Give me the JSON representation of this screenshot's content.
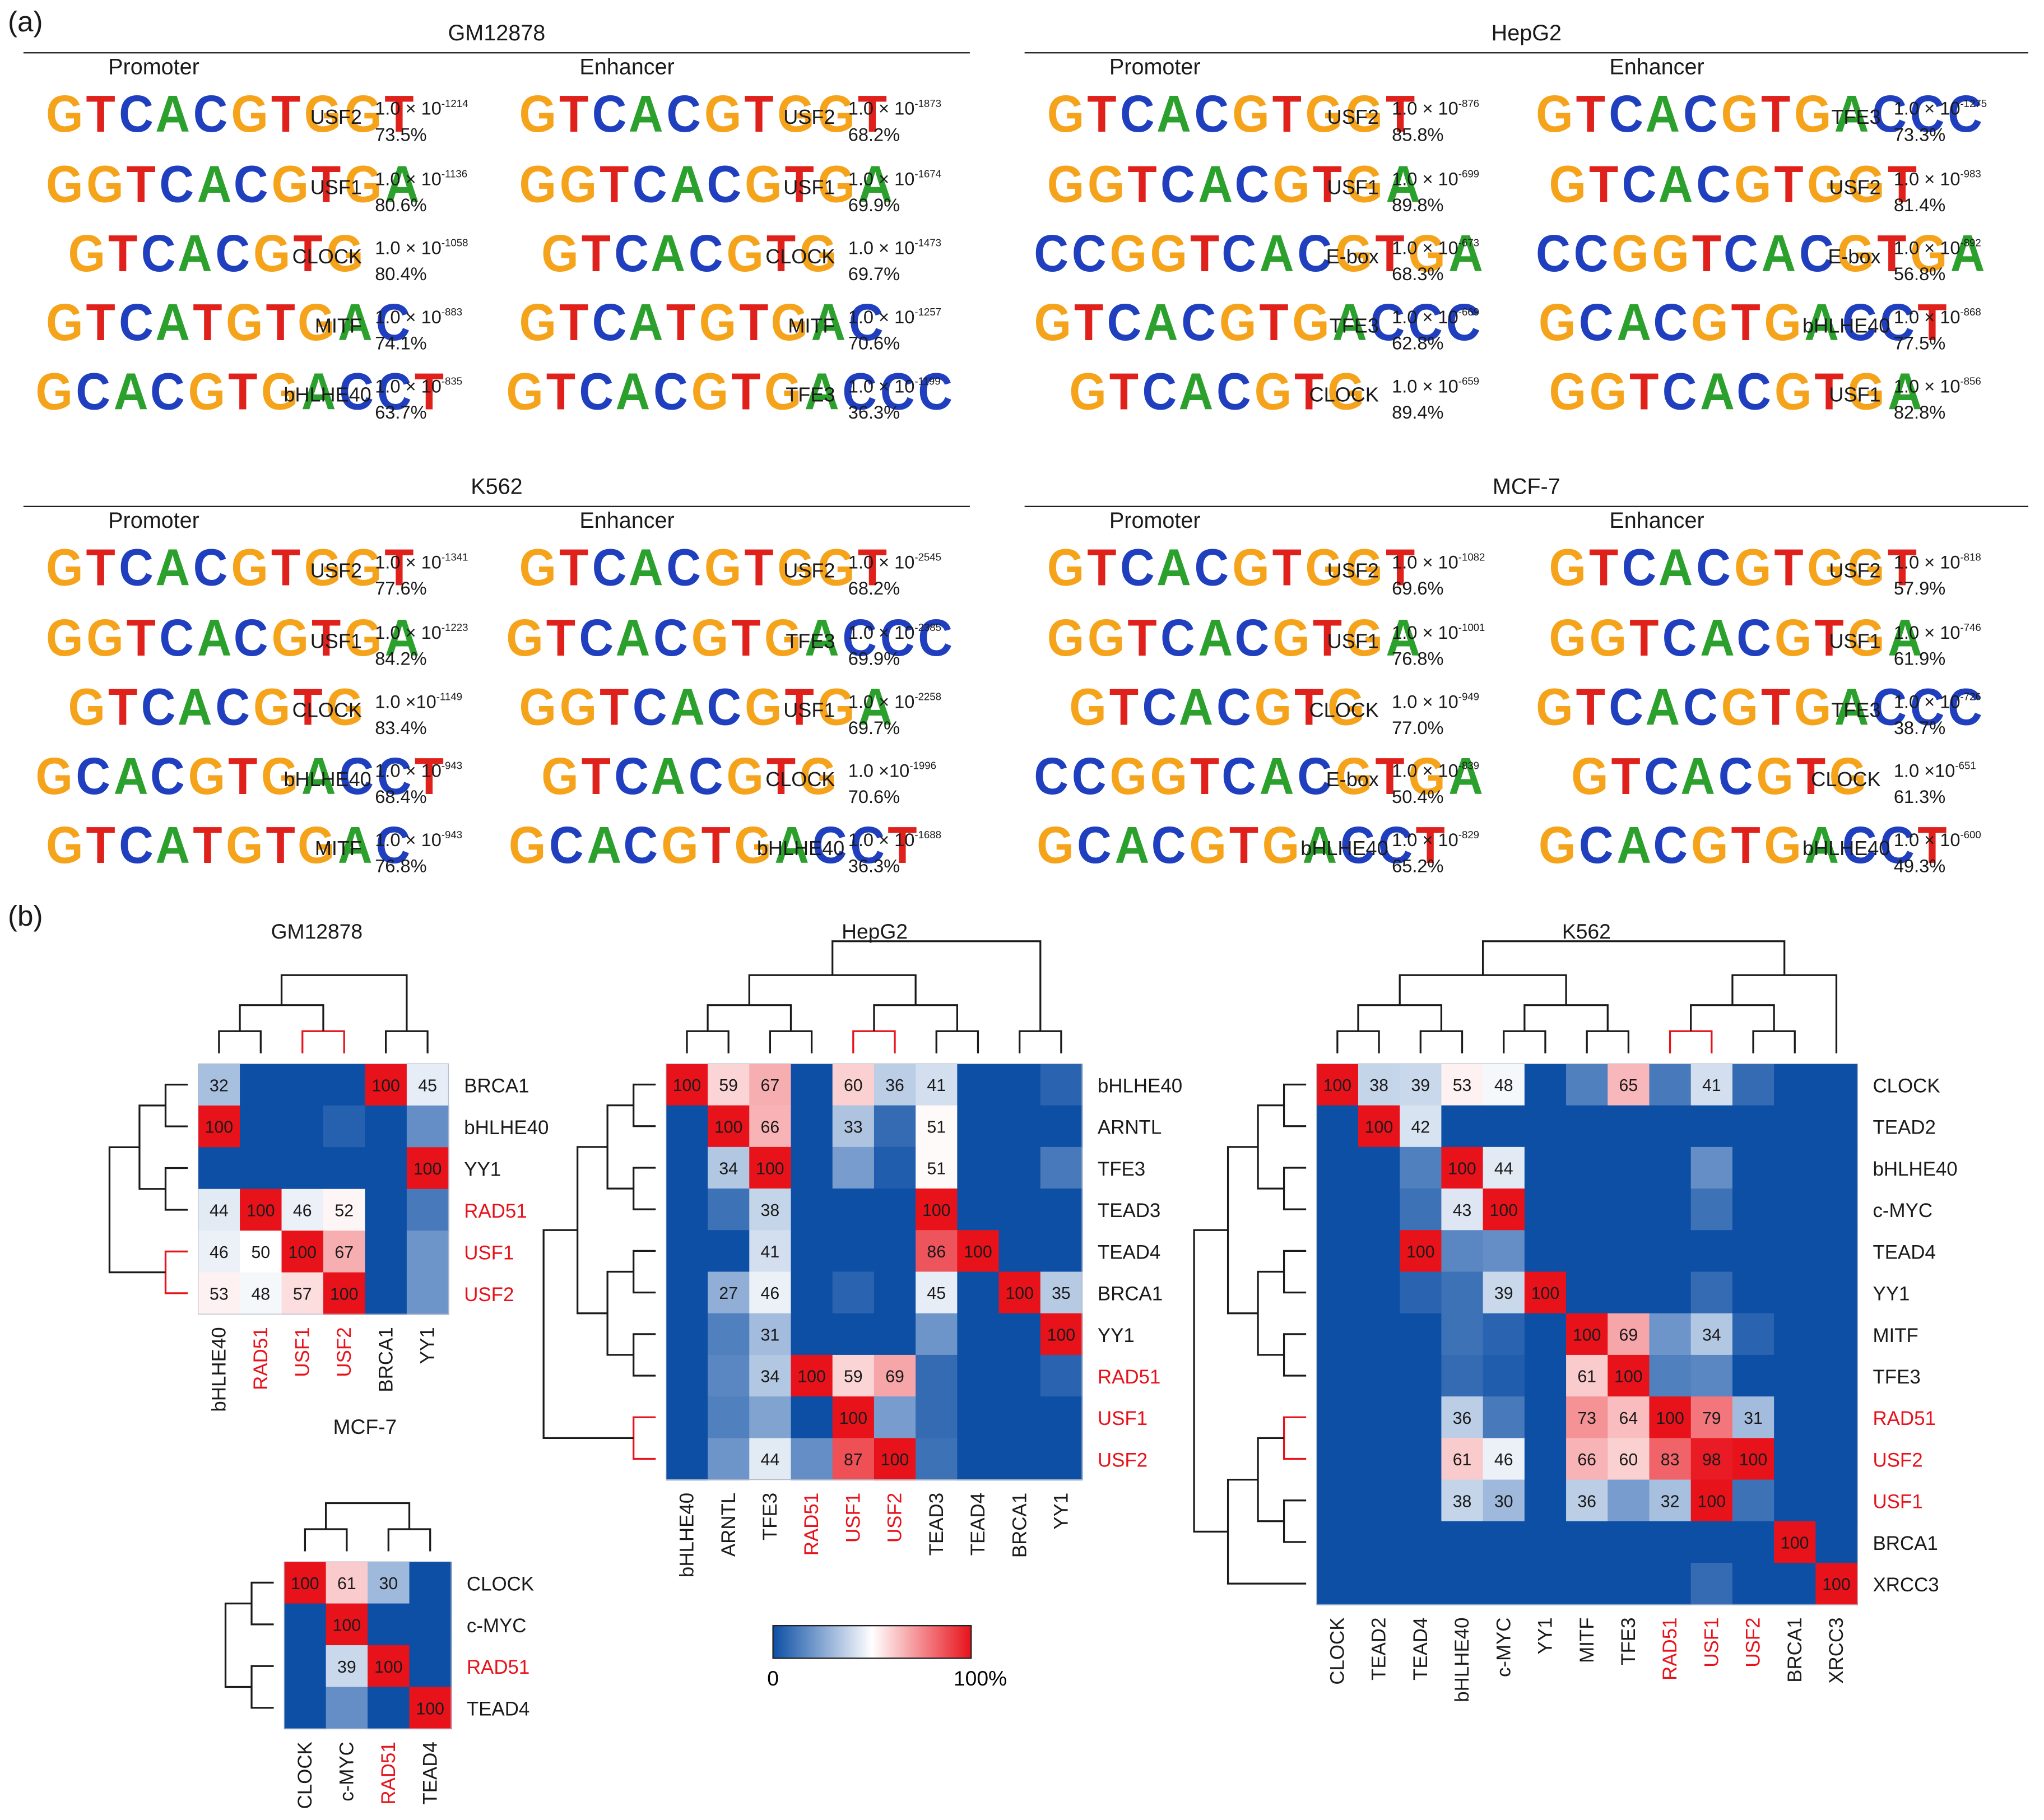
{
  "panel_a_label": "(a)",
  "panel_b_label": "(b)",
  "motif_panels": [
    {
      "cell_line": "GM12878",
      "promoter_title": "Promoter",
      "enhancer_title": "Enhancer",
      "promoter": [
        {
          "motif": "GTCACGTGGT",
          "tf": "USF2",
          "p_base": "1.0 × 10",
          "p_exp": "-1214",
          "pct": "73.5%"
        },
        {
          "motif": "GGTCACGTGA",
          "tf": "USF1",
          "p_base": "1.0 × 10",
          "p_exp": "-1136",
          "pct": "80.6%"
        },
        {
          "motif": "GTCACGTG",
          "tf": "CLOCK",
          "p_base": "1.0 × 10",
          "p_exp": "-1058",
          "pct": "80.4%"
        },
        {
          "motif": "GTCATGTGAC",
          "tf": "MITF",
          "p_base": "1.0 × 10",
          "p_exp": "-883",
          "pct": "74.1%"
        },
        {
          "motif": "GCACGTGACCT",
          "tf": "bHLHE40",
          "p_base": "1.0 × 10",
          "p_exp": "-835",
          "pct": "63.7%"
        }
      ],
      "enhancer": [
        {
          "motif": "GTCACGTGGT",
          "tf": "USF2",
          "p_base": "1.0 × 10",
          "p_exp": "-1873",
          "pct": "68.2%"
        },
        {
          "motif": "GGTCACGTGA",
          "tf": "USF1",
          "p_base": "1.0 × 10",
          "p_exp": "-1674",
          "pct": "69.9%"
        },
        {
          "motif": "GTCACGTG",
          "tf": "CLOCK",
          "p_base": "1.0 × 10",
          "p_exp": "-1473",
          "pct": "69.7%"
        },
        {
          "motif": "GTCATGTGAC",
          "tf": "MITF",
          "p_base": "1.0 × 10",
          "p_exp": "-1257",
          "pct": "70.6%"
        },
        {
          "motif": "GTCACGTGACCC",
          "tf": "TFE3",
          "p_base": "1.0 × 10",
          "p_exp": "-1199",
          "pct": "36.3%"
        }
      ]
    },
    {
      "cell_line": "HepG2",
      "promoter_title": "Promoter",
      "enhancer_title": "Enhancer",
      "promoter": [
        {
          "motif": "GTCACGTGGT",
          "tf": "USF2",
          "p_base": "1.0 × 10",
          "p_exp": "-876",
          "pct": "85.8%"
        },
        {
          "motif": "GGTCACGTGA",
          "tf": "USF1",
          "p_base": "1.0 × 10",
          "p_exp": "-699",
          "pct": "89.8%"
        },
        {
          "motif": "CCGGTCACGTGA",
          "tf": "E-box",
          "p_base": "1.0 × 10",
          "p_exp": "-673",
          "pct": "68.3%"
        },
        {
          "motif": "GTCACGTGACCC",
          "tf": "TFE3",
          "p_base": "1.0 × 10",
          "p_exp": "-669",
          "pct": "62.8%"
        },
        {
          "motif": "GTCACGTG",
          "tf": "CLOCK",
          "p_base": "1.0 × 10",
          "p_exp": "-659",
          "pct": "89.4%"
        }
      ],
      "enhancer": [
        {
          "motif": "GTCACGTGACCC",
          "tf": "TFE3",
          "p_base": "1.0 × 10",
          "p_exp": "-1275",
          "pct": "73.3%"
        },
        {
          "motif": "GTCACGTGGT",
          "tf": "USF2",
          "p_base": "1.0 × 10",
          "p_exp": "-983",
          "pct": "81.4%"
        },
        {
          "motif": "CCGGTCACGTGA",
          "tf": "E-box",
          "p_base": "1.0 × 10",
          "p_exp": "-892",
          "pct": "56.8%"
        },
        {
          "motif": "GCACGTGACCT",
          "tf": "bHLHE40",
          "p_base": "1.0 × 10",
          "p_exp": "-868",
          "pct": "77.5%"
        },
        {
          "motif": "GGTCACGTGA",
          "tf": "USF1",
          "p_base": "1.0 × 10",
          "p_exp": "-856",
          "pct": "82.8%"
        }
      ]
    },
    {
      "cell_line": "K562",
      "promoter_title": "Promoter",
      "enhancer_title": "Enhancer",
      "promoter": [
        {
          "motif": "GTCACGTGGT",
          "tf": "USF2",
          "p_base": "1.0 × 10",
          "p_exp": "-1341",
          "pct": "77.6%"
        },
        {
          "motif": "GGTCACGTGA",
          "tf": "USF1",
          "p_base": "1.0 × 10",
          "p_exp": "-1223",
          "pct": "84.2%"
        },
        {
          "motif": "GTCACGTG",
          "tf": "CLOCK",
          "p_base": "1.0 ×10",
          "p_exp": "-1149",
          "pct": "83.4%"
        },
        {
          "motif": "GCACGTGACCT",
          "tf": "bHLHE40",
          "p_base": "1.0 × 10",
          "p_exp": "-943",
          "pct": "68.4%"
        },
        {
          "motif": "GTCATGTGAC",
          "tf": "MITF",
          "p_base": "1.0 × 10",
          "p_exp": "-943",
          "pct": "76.8%"
        }
      ],
      "enhancer": [
        {
          "motif": "GTCACGTGGT",
          "tf": "USF2",
          "p_base": "1.0 × 10",
          "p_exp": "-2545",
          "pct": "68.2%"
        },
        {
          "motif": "GTCACGTGACCC",
          "tf": "TFE3",
          "p_base": "1.0 × 10",
          "p_exp": "-2385",
          "pct": "69.9%"
        },
        {
          "motif": "GGTCACGTGA",
          "tf": "USF1",
          "p_base": "1.0 × 10",
          "p_exp": "-2258",
          "pct": "69.7%"
        },
        {
          "motif": "GTCACGTG",
          "tf": "CLOCK",
          "p_base": "1.0 ×10",
          "p_exp": "-1996",
          "pct": "70.6%"
        },
        {
          "motif": "GCACGTGACCT",
          "tf": "bHLHE40",
          "p_base": "1.0 × 10",
          "p_exp": "-1688",
          "pct": "36.3%"
        }
      ]
    },
    {
      "cell_line": "MCF-7",
      "promoter_title": "Promoter",
      "enhancer_title": "Enhancer",
      "promoter": [
        {
          "motif": "GTCACGTGGT",
          "tf": "USF2",
          "p_base": "1.0 × 10",
          "p_exp": "-1082",
          "pct": "69.6%"
        },
        {
          "motif": "GGTCACGTGA",
          "tf": "USF1",
          "p_base": "1.0 × 10",
          "p_exp": "-1001",
          "pct": "76.8%"
        },
        {
          "motif": "GTCACGTG",
          "tf": "CLOCK",
          "p_base": "1.0 × 10",
          "p_exp": "-949",
          "pct": "77.0%"
        },
        {
          "motif": "CCGGTCACGTGA",
          "tf": "E-box",
          "p_base": "1.0 × 10",
          "p_exp": "-839",
          "pct": "50.4%"
        },
        {
          "motif": "GCACGTGACCT",
          "tf": "bHLHE40",
          "p_base": "1.0 × 10",
          "p_exp": "-829",
          "pct": "65.2%"
        }
      ],
      "enhancer": [
        {
          "motif": "GTCACGTGGT",
          "tf": "USF2",
          "p_base": "1.0 × 10",
          "p_exp": "-818",
          "pct": "57.9%"
        },
        {
          "motif": "GGTCACGTGA",
          "tf": "USF1",
          "p_base": "1.0 × 10",
          "p_exp": "-746",
          "pct": "61.9%"
        },
        {
          "motif": "GTCACGTGACCC",
          "tf": "TFE3",
          "p_base": "1.0 × 10",
          "p_exp": "-726",
          "pct": "38.7%"
        },
        {
          "motif": "GTCACGTG",
          "tf": "CLOCK",
          "p_base": "1.0 ×10",
          "p_exp": "-651",
          "pct": "61.3%"
        },
        {
          "motif": "GCACGTGACCT",
          "tf": "bHLHE40",
          "p_base": "1.0 × 10",
          "p_exp": "-600",
          "pct": "49.3%"
        }
      ]
    }
  ],
  "colors": {
    "base_A": "#2ca02c",
    "base_C": "#1f3fbf",
    "base_G": "#f5a31a",
    "base_T": "#e0201b",
    "heat_low": "#0d4fa5",
    "heat_mid": "#ffffff",
    "heat_high": "#e8121b",
    "highlight": "#e8121b",
    "dendrogram": "#1a1a1a"
  },
  "chart_data": [
    {
      "type": "heatmap",
      "title": "GM12878",
      "rows": [
        "BRCA1",
        "bHLHE40",
        "YY1",
        "RAD51",
        "USF1",
        "USF2"
      ],
      "columns": [
        "bHLHE40",
        "RAD51",
        "USF1",
        "USF2",
        "BRCA1",
        "YY1"
      ],
      "highlighted": [
        "RAD51",
        "USF1",
        "USF2"
      ],
      "values": [
        [
          32,
          0,
          0,
          0,
          100,
          45
        ],
        [
          100,
          0,
          0,
          5,
          0,
          18
        ],
        [
          0,
          0,
          0,
          0,
          0,
          100
        ],
        [
          44,
          100,
          46,
          52,
          0,
          12
        ],
        [
          46,
          50,
          100,
          67,
          0,
          20
        ],
        [
          53,
          48,
          57,
          100,
          0,
          20
        ]
      ],
      "labeled_cells": [
        [
          32,
          0,
          0,
          0,
          100,
          45
        ],
        [
          100,
          0,
          0,
          0,
          0,
          0
        ],
        [
          0,
          0,
          0,
          0,
          0,
          100
        ],
        [
          44,
          100,
          46,
          52,
          0,
          0
        ],
        [
          46,
          50,
          100,
          67,
          0,
          0
        ],
        [
          53,
          48,
          57,
          100,
          0,
          0
        ]
      ]
    },
    {
      "type": "heatmap",
      "title": "HepG2",
      "rows": [
        "bHLHE40",
        "ARNTL",
        "TFE3",
        "TEAD3",
        "TEAD4",
        "BRCA1",
        "YY1",
        "RAD51",
        "USF1",
        "USF2"
      ],
      "columns": [
        "bHLHE40",
        "ARNTL",
        "TFE3",
        "RAD51",
        "USF1",
        "USF2",
        "TEAD3",
        "TEAD4",
        "BRCA1",
        "YY1"
      ],
      "highlighted": [
        "RAD51",
        "USF1",
        "USF2"
      ],
      "values": [
        [
          100,
          59,
          67,
          0,
          60,
          36,
          41,
          0,
          0,
          6
        ],
        [
          0,
          100,
          66,
          0,
          33,
          8,
          51,
          0,
          0,
          0
        ],
        [
          0,
          34,
          100,
          0,
          22,
          4,
          51,
          0,
          0,
          12
        ],
        [
          0,
          10,
          38,
          0,
          0,
          0,
          100,
          0,
          0,
          0
        ],
        [
          0,
          0,
          41,
          0,
          0,
          0,
          86,
          100,
          0,
          0
        ],
        [
          0,
          27,
          46,
          0,
          6,
          0,
          45,
          0,
          100,
          35
        ],
        [
          0,
          14,
          31,
          0,
          0,
          0,
          20,
          0,
          0,
          100
        ],
        [
          0,
          16,
          34,
          100,
          59,
          69,
          8,
          0,
          0,
          6
        ],
        [
          0,
          14,
          24,
          0,
          100,
          22,
          8,
          0,
          0,
          0
        ],
        [
          0,
          20,
          44,
          18,
          87,
          100,
          10,
          0,
          0,
          0
        ]
      ],
      "labeled_cells": [
        [
          100,
          59,
          67,
          0,
          60,
          36,
          41,
          0,
          0,
          0
        ],
        [
          0,
          100,
          66,
          0,
          33,
          0,
          51,
          0,
          0,
          0
        ],
        [
          0,
          34,
          100,
          0,
          0,
          0,
          51,
          0,
          0,
          0
        ],
        [
          0,
          0,
          38,
          0,
          0,
          0,
          100,
          0,
          0,
          0
        ],
        [
          0,
          0,
          41,
          0,
          0,
          0,
          86,
          100,
          0,
          0
        ],
        [
          0,
          27,
          46,
          0,
          0,
          0,
          45,
          0,
          100,
          35
        ],
        [
          0,
          0,
          31,
          0,
          0,
          0,
          0,
          0,
          0,
          100
        ],
        [
          0,
          0,
          34,
          100,
          59,
          69,
          0,
          0,
          0,
          0
        ],
        [
          0,
          0,
          0,
          0,
          100,
          0,
          0,
          0,
          0,
          0
        ],
        [
          0,
          0,
          44,
          0,
          87,
          100,
          0,
          0,
          0,
          0
        ]
      ]
    },
    {
      "type": "heatmap",
      "title": "K562",
      "rows": [
        "CLOCK",
        "TEAD2",
        "bHLHE40",
        "c-MYC",
        "TEAD4",
        "YY1",
        "MITF",
        "TFE3",
        "RAD51",
        "USF2",
        "USF1",
        "BRCA1",
        "XRCC3"
      ],
      "columns": [
        "CLOCK",
        "TEAD2",
        "TEAD4",
        "bHLHE40",
        "c-MYC",
        "YY1",
        "MITF",
        "TFE3",
        "RAD51",
        "USF1",
        "USF2",
        "BRCA1",
        "XRCC3"
      ],
      "highlighted": [
        "RAD51",
        "USF1",
        "USF2"
      ],
      "values": [
        [
          100,
          38,
          39,
          53,
          48,
          0,
          14,
          65,
          12,
          41,
          8,
          0,
          0
        ],
        [
          0,
          100,
          42,
          0,
          0,
          0,
          0,
          0,
          0,
          0,
          0,
          0,
          0
        ],
        [
          0,
          0,
          14,
          100,
          44,
          0,
          0,
          0,
          0,
          18,
          0,
          0,
          0
        ],
        [
          0,
          0,
          10,
          43,
          100,
          0,
          0,
          0,
          0,
          10,
          0,
          0,
          0
        ],
        [
          0,
          0,
          100,
          16,
          18,
          0,
          0,
          0,
          0,
          0,
          0,
          0,
          0
        ],
        [
          0,
          0,
          6,
          10,
          39,
          100,
          0,
          0,
          0,
          8,
          0,
          0,
          0
        ],
        [
          0,
          0,
          0,
          10,
          6,
          0,
          100,
          69,
          20,
          34,
          6,
          0,
          0
        ],
        [
          0,
          0,
          0,
          8,
          4,
          0,
          61,
          100,
          14,
          16,
          0,
          0,
          0
        ],
        [
          0,
          0,
          0,
          36,
          12,
          0,
          73,
          64,
          100,
          79,
          31,
          0,
          0
        ],
        [
          0,
          0,
          0,
          61,
          46,
          0,
          66,
          60,
          83,
          98,
          100,
          0,
          0
        ],
        [
          0,
          0,
          0,
          38,
          30,
          0,
          36,
          22,
          32,
          100,
          10,
          0,
          0
        ],
        [
          0,
          0,
          0,
          0,
          0,
          0,
          0,
          0,
          0,
          0,
          0,
          100,
          0
        ],
        [
          0,
          0,
          0,
          0,
          0,
          0,
          0,
          0,
          0,
          8,
          0,
          0,
          100
        ]
      ],
      "labeled_cells": [
        [
          100,
          38,
          39,
          53,
          48,
          0,
          0,
          65,
          0,
          41,
          0,
          0,
          0
        ],
        [
          0,
          100,
          42,
          0,
          0,
          0,
          0,
          0,
          0,
          0,
          0,
          0,
          0
        ],
        [
          0,
          0,
          0,
          100,
          44,
          0,
          0,
          0,
          0,
          0,
          0,
          0,
          0
        ],
        [
          0,
          0,
          0,
          43,
          100,
          0,
          0,
          0,
          0,
          0,
          0,
          0,
          0
        ],
        [
          0,
          0,
          100,
          0,
          0,
          0,
          0,
          0,
          0,
          0,
          0,
          0,
          0
        ],
        [
          0,
          0,
          0,
          0,
          39,
          100,
          0,
          0,
          0,
          0,
          0,
          0,
          0
        ],
        [
          0,
          0,
          0,
          0,
          0,
          0,
          100,
          69,
          0,
          34,
          0,
          0,
          0
        ],
        [
          0,
          0,
          0,
          0,
          0,
          0,
          61,
          100,
          0,
          0,
          0,
          0,
          0
        ],
        [
          0,
          0,
          0,
          36,
          0,
          0,
          73,
          64,
          100,
          79,
          31,
          0,
          0
        ],
        [
          0,
          0,
          0,
          61,
          46,
          0,
          66,
          60,
          83,
          98,
          100,
          0,
          0
        ],
        [
          0,
          0,
          0,
          38,
          30,
          0,
          36,
          0,
          32,
          100,
          0,
          0,
          0
        ],
        [
          0,
          0,
          0,
          0,
          0,
          0,
          0,
          0,
          0,
          0,
          0,
          100,
          0
        ],
        [
          0,
          0,
          0,
          0,
          0,
          0,
          0,
          0,
          0,
          0,
          0,
          0,
          100
        ]
      ]
    },
    {
      "type": "heatmap",
      "title": "MCF-7",
      "rows": [
        "CLOCK",
        "c-MYC",
        "RAD51",
        "TEAD4"
      ],
      "columns": [
        "CLOCK",
        "c-MYC",
        "RAD51",
        "TEAD4"
      ],
      "highlighted": [
        "RAD51"
      ],
      "values": [
        [
          100,
          61,
          30,
          0
        ],
        [
          0,
          100,
          0,
          0
        ],
        [
          0,
          39,
          100,
          0
        ],
        [
          0,
          18,
          0,
          100
        ]
      ],
      "labeled_cells": [
        [
          100,
          61,
          30,
          0
        ],
        [
          0,
          100,
          0,
          0
        ],
        [
          0,
          39,
          100,
          0
        ],
        [
          0,
          0,
          0,
          100
        ]
      ]
    }
  ],
  "colorbar": {
    "min_label": "0",
    "max_label": "100%",
    "range": [
      0,
      100
    ]
  }
}
